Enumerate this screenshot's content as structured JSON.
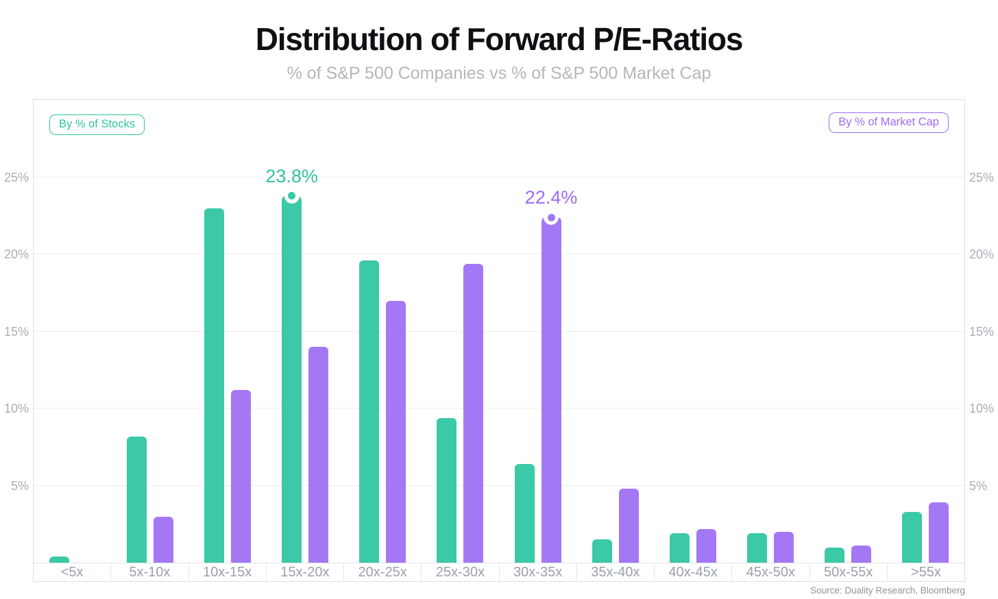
{
  "page": {
    "title": "Distribution of Forward P/E-Ratios",
    "subtitle": "% of S&P 500 Companies vs % of S&P 500 Market Cap",
    "source": "Source: Duality Research, Bloomberg"
  },
  "legend": {
    "stocks_label": "By % of Stocks",
    "market_cap_label": "By % of Market Cap"
  },
  "colors": {
    "stocks_bar": "#3BC9A7",
    "stocks_text": "#2FC3A4",
    "market_cap_bar": "#A478F5",
    "market_cap_text": "#9B6CF2",
    "grid": "#ededee",
    "axis_line": "#dfe2e6",
    "card_border": "#dcdfe3",
    "x_label": "#99a1a9",
    "y_label": "#a8aeb5",
    "title": "#0f1013",
    "subtitle": "#b4b6b9",
    "source": "#8d949c"
  },
  "chart_data": {
    "type": "bar",
    "title": "Distribution of Forward P/E-Ratios",
    "subtitle": "% of S&P 500 Companies vs % of S&P 500 Market Cap",
    "categories": [
      "<5x",
      "5x-10x",
      "10x-15x",
      "15x-20x",
      "20x-25x",
      "25x-30x",
      "30x-35x",
      "35x-40x",
      "40x-45x",
      "45x-50x",
      "50x-55x",
      ">55x"
    ],
    "series": [
      {
        "name": "By % of Stocks",
        "color_key": "stocks",
        "values": [
          0.4,
          8.2,
          23.0,
          23.8,
          19.6,
          9.4,
          6.4,
          1.5,
          1.9,
          1.9,
          1.0,
          3.3
        ]
      },
      {
        "name": "By % of Market Cap",
        "color_key": "market_cap",
        "values": [
          0.0,
          3.0,
          11.2,
          14.0,
          17.0,
          19.4,
          22.4,
          4.8,
          2.2,
          2.0,
          1.1,
          3.9
        ]
      }
    ],
    "annotations": [
      {
        "series": 0,
        "category": "15x-20x",
        "label": "23.8%"
      },
      {
        "series": 1,
        "category": "30x-35x",
        "label": "22.4%"
      }
    ],
    "y_ticks": [
      {
        "value": 5,
        "label": "5%"
      },
      {
        "value": 10,
        "label": "10%"
      },
      {
        "value": 15,
        "label": "15%"
      },
      {
        "value": 20,
        "label": "20%"
      },
      {
        "value": 25,
        "label": "25%"
      }
    ],
    "ylim": [
      0,
      30
    ],
    "grid": true,
    "legend_position": "top-corners",
    "y_axis_sides": "both"
  }
}
